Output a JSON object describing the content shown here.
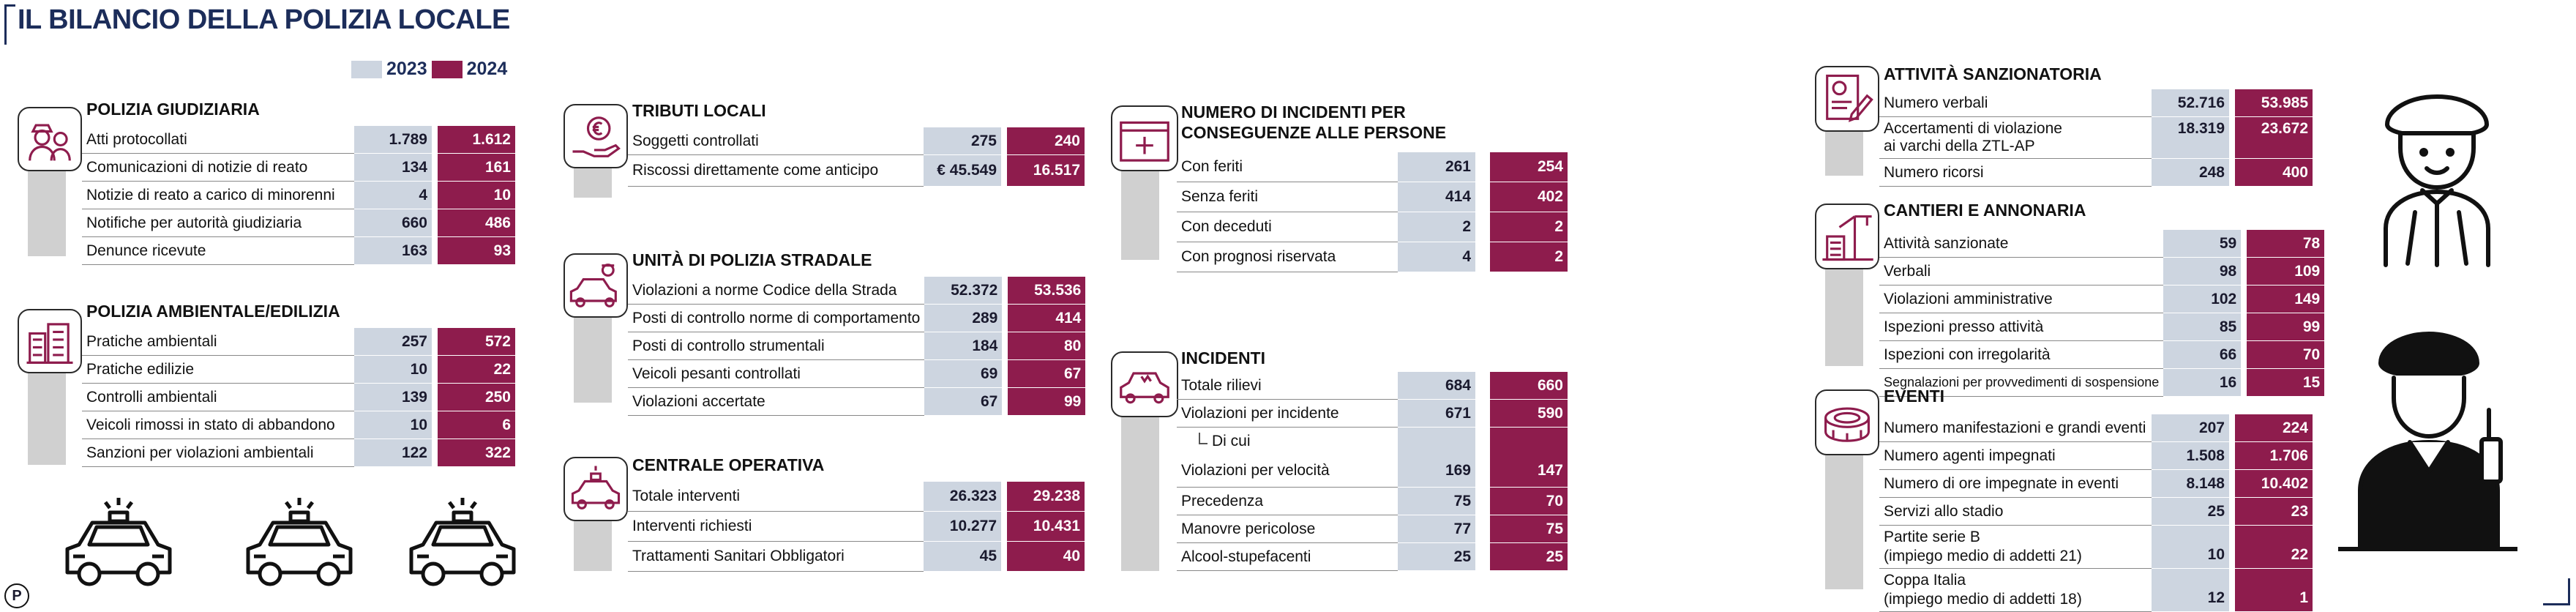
{
  "title": "IL BILANCIO DELLA POLIZIA LOCALE",
  "legend": {
    "y2023": "2023",
    "y2024": "2024"
  },
  "colors": {
    "y2023": "#cdd5e0",
    "y2024": "#8e1c4d",
    "title": "#1c2d5a"
  },
  "logo": "P",
  "sections": {
    "giudiziaria": {
      "title": "POLIZIA GIUDIZIARIA",
      "icon": "police-officers-icon",
      "rows": [
        {
          "label": "Atti protocollati",
          "v2023": "1.789",
          "v2024": "1.612"
        },
        {
          "label": "Comunicazioni di notizie di reato",
          "v2023": "134",
          "v2024": "161"
        },
        {
          "label": "Notizie di reato a carico di minorenni",
          "v2023": "4",
          "v2024": "10"
        },
        {
          "label": "Notifiche per autorità giudiziaria",
          "v2023": "660",
          "v2024": "486"
        },
        {
          "label": "Denunce ricevute",
          "v2023": "163",
          "v2024": "93"
        }
      ]
    },
    "ambientale": {
      "title": "POLIZIA AMBIENTALE/EDILIZIA",
      "icon": "buildings-icon",
      "rows": [
        {
          "label": "Pratiche ambientali",
          "v2023": "257",
          "v2024": "572"
        },
        {
          "label": "Pratiche edilizie",
          "v2023": "10",
          "v2024": "22"
        },
        {
          "label": "Controlli ambientali",
          "v2023": "139",
          "v2024": "250"
        },
        {
          "label": "Veicoli rimossi in stato di abbandono",
          "v2023": "10",
          "v2024": "6"
        },
        {
          "label": "Sanzioni per violazioni ambientali",
          "v2023": "122",
          "v2024": "322"
        }
      ]
    },
    "tributi": {
      "title": "TRIBUTI LOCALI",
      "icon": "coin-hand-icon",
      "rows": [
        {
          "label": "Soggetti controllati",
          "v2023": "275",
          "v2024": "240"
        },
        {
          "label": "Riscossi direttamente come anticipo",
          "v2023": "€ 45.549",
          "v2024": "16.517"
        }
      ]
    },
    "stradale": {
      "title": "UNITÀ DI POLIZIA STRADALE",
      "icon": "police-car-officer-icon",
      "rows": [
        {
          "label": "Violazioni a norme Codice della Strada",
          "v2023": "52.372",
          "v2024": "53.536"
        },
        {
          "label": "Posti di controllo norme di comportamento",
          "v2023": "289",
          "v2024": "414"
        },
        {
          "label": "Posti di controllo strumentali",
          "v2023": "184",
          "v2024": "80"
        },
        {
          "label": "Veicoli pesanti controllati",
          "v2023": "69",
          "v2024": "67"
        },
        {
          "label": "Violazioni accertate",
          "v2023": "67",
          "v2024": "99"
        }
      ]
    },
    "centrale": {
      "title": "CENTRALE OPERATIVA",
      "icon": "police-car-icon",
      "rows": [
        {
          "label": "Totale interventi",
          "v2023": "26.323",
          "v2024": "29.238"
        },
        {
          "label": "Interventi richiesti",
          "v2023": "10.277",
          "v2024": "10.431"
        },
        {
          "label": "Trattamenti Sanitari Obbligatori",
          "v2023": "45",
          "v2024": "40"
        }
      ]
    },
    "incidenti_persone": {
      "title_line1": "NUMERO DI INCIDENTI PER",
      "title_line2": "CONSEGUENZE ALLE PERSONE",
      "icon": "first-aid-icon",
      "rows": [
        {
          "label": "Con feriti",
          "v2023": "261",
          "v2024": "254"
        },
        {
          "label": "Senza feriti",
          "v2023": "414",
          "v2024": "402"
        },
        {
          "label": "Con deceduti",
          "v2023": "2",
          "v2024": "2"
        },
        {
          "label": "Con prognosi riservata",
          "v2023": "4",
          "v2024": "2"
        }
      ]
    },
    "incidenti": {
      "title": "INCIDENTI",
      "icon": "crashed-car-icon",
      "rows": [
        {
          "label": "Totale rilievi",
          "v2023": "684",
          "v2024": "660"
        },
        {
          "label": "Violazioni per incidente",
          "v2023": "671",
          "v2024": "590"
        },
        {
          "label": "Di cui",
          "v2023": "",
          "v2024": ""
        },
        {
          "label": "Violazioni per velocità",
          "v2023": "169",
          "v2024": "147"
        },
        {
          "label": "Precedenza",
          "v2023": "75",
          "v2024": "70"
        },
        {
          "label": "Manovre pericolose",
          "v2023": "77",
          "v2024": "75"
        },
        {
          "label": "Alcool-stupefacenti",
          "v2023": "25",
          "v2024": "25"
        }
      ]
    },
    "sanzionatoria": {
      "title": "ATTIVITÀ SANZIONATORIA",
      "icon": "document-pen-icon",
      "rows": [
        {
          "label": "Numero verbali",
          "v2023": "52.716",
          "v2024": "53.985"
        },
        {
          "label": "Accertamenti di violazione",
          "label2": "ai varchi della ZTL-AP",
          "v2023": "18.319",
          "v2024": "23.672"
        },
        {
          "label": "Numero ricorsi",
          "v2023": "248",
          "v2024": "400"
        }
      ]
    },
    "cantieri": {
      "title": "CANTIERI E ANNONARIA",
      "icon": "construction-icon",
      "rows": [
        {
          "label": "Attività sanzionate",
          "v2023": "59",
          "v2024": "78"
        },
        {
          "label": "Verbali",
          "v2023": "98",
          "v2024": "109"
        },
        {
          "label": "Violazioni amministrative",
          "v2023": "102",
          "v2024": "149"
        },
        {
          "label": "Ispezioni presso attività",
          "v2023": "85",
          "v2024": "99"
        },
        {
          "label": "Ispezioni con irregolarità",
          "v2023": "66",
          "v2024": "70"
        },
        {
          "label": "Segnalazioni per provvedimenti di sospensione",
          "v2023": "16",
          "v2024": "15"
        }
      ]
    },
    "eventi": {
      "title": "EVENTI",
      "icon": "stadium-icon",
      "rows": [
        {
          "label": "Numero manifestazioni e grandi eventi",
          "v2023": "207",
          "v2024": "224"
        },
        {
          "label": "Numero agenti impegnati",
          "v2023": "1.508",
          "v2024": "1.706"
        },
        {
          "label": "Numero di ore impegnate in eventi",
          "v2023": "8.148",
          "v2024": "10.402"
        },
        {
          "label": "Servizi allo stadio",
          "v2023": "25",
          "v2024": "23"
        },
        {
          "label": "Partite serie B",
          "label2": "(impiego medio di addetti 21)",
          "v2023": "10",
          "v2024": "22"
        },
        {
          "label": "Coppa Italia",
          "label2": "(impiego medio di addetti 18)",
          "v2023": "12",
          "v2024": "1"
        }
      ]
    }
  }
}
